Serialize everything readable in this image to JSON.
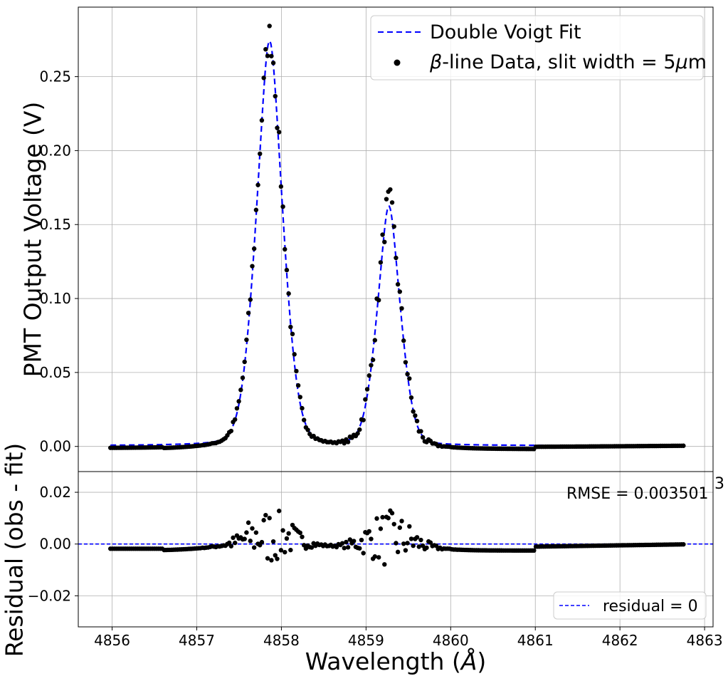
{
  "chart_data": [
    {
      "type": "line",
      "panel": "main",
      "ylabel": "PMT Output Voltage (V)",
      "xlabel": "",
      "xlim": [
        4855.6,
        4863.1
      ],
      "ylim": [
        -0.017,
        0.297
      ],
      "grid": true,
      "legend_position": "top-right",
      "x_ticks": [
        "4856",
        "4857",
        "4858",
        "4859",
        "4860",
        "4861",
        "4862",
        "4863"
      ],
      "y_ticks": [
        "0.00",
        "0.05",
        "0.10",
        "0.15",
        "0.20",
        "0.25"
      ],
      "y_tick_values": [
        0,
        0.05,
        0.1,
        0.15,
        0.2,
        0.25
      ],
      "series": [
        {
          "name": "Double Voigt Fit",
          "kind": "dashed-line",
          "color": "#0000ff",
          "model": {
            "baseline": 0.0005,
            "peaks": [
              {
                "center": 4857.86,
                "amplitude": 0.2735,
                "sigma": 0.17,
                "gamma": 0.12
              },
              {
                "center": 4859.27,
                "amplitude": 0.1615,
                "sigma": 0.15,
                "gamma": 0.1
              }
            ],
            "x_start": 4855.98,
            "x_end": 4862.75
          }
        },
        {
          "name": "β-line Data, slit width = 5μm",
          "kind": "scatter",
          "color": "#000000",
          "x_start": 4855.98,
          "x_end": 4862.75,
          "n_points": 300
        }
      ],
      "legend": [
        {
          "label": "Double Voigt Fit"
        },
        {
          "label_prefix": "β",
          "label_rest": "-line Data, slit width = 5",
          "label_mu": "μ",
          "label_end": "m"
        }
      ]
    },
    {
      "type": "scatter",
      "panel": "residual",
      "ylabel": "Residual (obs - fit)",
      "xlabel": "Wavelength (Å)",
      "xlabel_prefix": "Wavelength (",
      "xlabel_symbol": "Å",
      "xlabel_suffix": ")",
      "xlim": [
        4855.6,
        4863.1
      ],
      "ylim": [
        -0.032,
        0.028
      ],
      "grid": true,
      "legend_position": "lower-right",
      "x_ticks": [
        "4856",
        "4857",
        "4858",
        "4859",
        "4860",
        "4861",
        "4862",
        "4863"
      ],
      "x_tick_values": [
        4856,
        4857,
        4858,
        4859,
        4860,
        4861,
        4862,
        4863
      ],
      "y_ticks": [
        "0.02",
        "0.00",
        "−0.02"
      ],
      "y_tick_values": [
        0.02,
        0,
        -0.02
      ],
      "annotation": "RMSE = 0.003501",
      "annotation_overflow": "3",
      "reference_line": {
        "name": "residual = 0",
        "value": 0,
        "color": "#0000ff"
      },
      "legend": [
        {
          "label": "residual = 0"
        }
      ]
    }
  ]
}
